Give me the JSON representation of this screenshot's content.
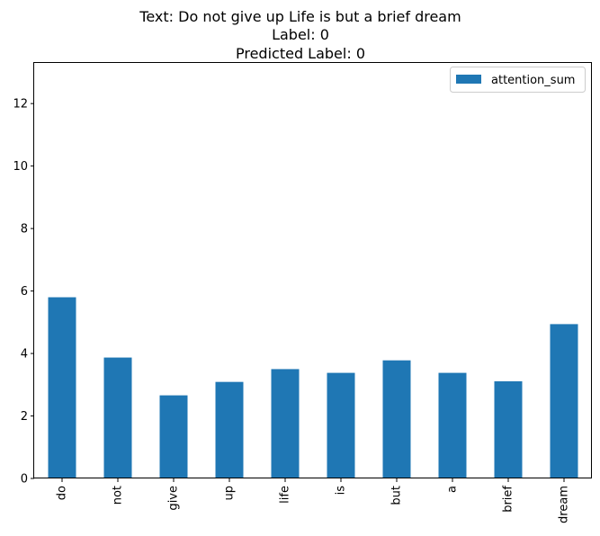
{
  "chart_data": {
    "type": "bar",
    "title_lines": [
      "Text: Do not give up Life is but a brief dream",
      "Label: 0",
      "Predicted Label: 0"
    ],
    "categories": [
      "do",
      "not",
      "give",
      "up",
      "life",
      "is",
      "but",
      "a",
      "brief",
      "dream"
    ],
    "series": [
      {
        "name": "attention_sum",
        "values": [
          5.8,
          3.87,
          2.66,
          3.09,
          3.5,
          3.38,
          3.78,
          3.38,
          3.11,
          4.94
        ]
      }
    ],
    "ylim": [
      0,
      13.3
    ],
    "yticks": [
      0,
      2,
      4,
      6,
      8,
      10,
      12
    ],
    "grid": false,
    "legend_position": "top-right",
    "colors": {
      "bar": "#1f77b4",
      "axis": "#000000",
      "background": "#ffffff"
    }
  }
}
